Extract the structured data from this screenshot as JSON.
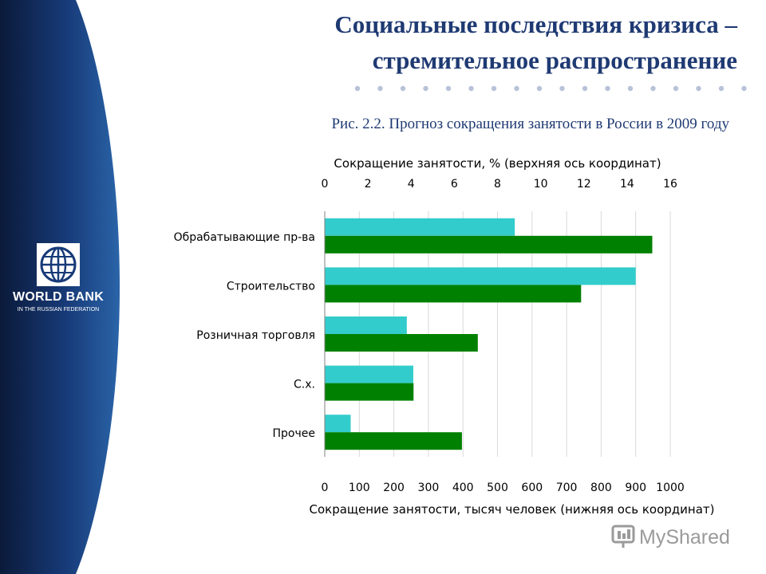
{
  "slide": {
    "title_line1": "Социальные последствия кризиса –",
    "title_line2": "стремительное распространение",
    "caption": "Рис. 2.2. Прогноз сокращения занятости в России в 2009 году"
  },
  "brand": {
    "name": "WORLD BANK",
    "subtitle": "IN THE RUSSIAN FEDERATION",
    "logo_icon": "globe-icon"
  },
  "watermark": {
    "text": "MyShared"
  },
  "colors": {
    "title": "#1f3a73",
    "panel_dark": "#0b1a3a",
    "panel_light": "#2a64a8",
    "series_top": "#33cccc",
    "series_bottom": "#008000"
  },
  "chart_data": {
    "type": "bar",
    "orientation": "horizontal",
    "categories": [
      "Обрабатывающие пр-ва",
      "Строительство",
      "Розничная торговля",
      "С.х.",
      "Прочее"
    ],
    "top_axis": {
      "label": "Сокращение занятости, % (верхняя ось координат)",
      "range": [
        0,
        16
      ],
      "ticks": [
        "0",
        "2",
        "4",
        "6",
        "8",
        "10",
        "12",
        "14",
        "16"
      ]
    },
    "bottom_axis": {
      "label": "Сокращение занятости, тысяч человек (нижняя ось координат)",
      "range": [
        0,
        1000
      ],
      "ticks": [
        "0",
        "100",
        "200",
        "300",
        "400",
        "500",
        "600",
        "700",
        "800",
        "900",
        "1000"
      ]
    },
    "series": [
      {
        "axis": "top",
        "values": [
          8.8,
          14.4,
          3.8,
          4.1,
          1.2
        ]
      },
      {
        "axis": "bottom",
        "values": [
          948,
          742,
          443,
          257,
          397
        ]
      }
    ],
    "grid": true,
    "legend": "none"
  }
}
